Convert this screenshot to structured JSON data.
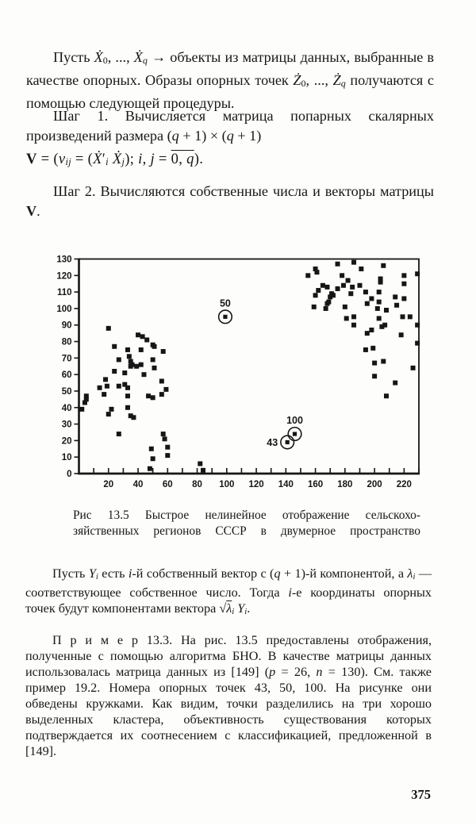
{
  "page": {
    "number": "375"
  },
  "paragraphs": {
    "p1": [
      {
        "t": "Пусть "
      },
      {
        "t": "Ẋ",
        "i": 1
      },
      {
        "t": "0",
        "sub": 1
      },
      {
        "t": ", ..., "
      },
      {
        "t": "Ẋ",
        "i": 1
      },
      {
        "t": "q",
        "sub": 1,
        "i": 1
      },
      {
        "t": " → объекты из матрицы данных, выбранные в качестве опорных. Образы опорных точек "
      },
      {
        "t": "Ż",
        "i": 1
      },
      {
        "t": "0",
        "sub": 1
      },
      {
        "t": ", ..., "
      },
      {
        "t": "Ż",
        "i": 1
      },
      {
        "t": "q",
        "sub": 1,
        "i": 1
      },
      {
        "t": " получаются с помощью следующей процедуры."
      }
    ],
    "p2": [
      {
        "t": "Шаг 1. Вычисляется матрица попарных скалярных произведений размера ("
      },
      {
        "t": "q",
        "i": 1
      },
      {
        "t": " + 1) × ("
      },
      {
        "t": "q",
        "i": 1
      },
      {
        "t": " + 1)"
      }
    ],
    "formula1": [
      {
        "t": "V",
        "b": 1
      },
      {
        "t": " = ("
      },
      {
        "t": "v",
        "i": 1
      },
      {
        "t": "ij",
        "sub": 1,
        "i": 1
      },
      {
        "t": " = ("
      },
      {
        "t": "Ẋ",
        "i": 1
      },
      {
        "t": "′"
      },
      {
        "t": "i",
        "sub": 1,
        "i": 1
      },
      {
        "t": " "
      },
      {
        "t": "Ẋ",
        "i": 1
      },
      {
        "t": "j",
        "sub": 1,
        "i": 1
      },
      {
        "t": ");  "
      },
      {
        "t": "i",
        "i": 1
      },
      {
        "t": ", "
      },
      {
        "t": "j",
        "i": 1
      },
      {
        "t": " = "
      },
      {
        "t": "0, ",
        "ov": 1
      },
      {
        "t": "q",
        "ov": 1,
        "i": 1
      },
      {
        "t": ")."
      }
    ],
    "p3": [
      {
        "t": "Шаг 2. Вычисляются собственные числа и векторы матрицы "
      },
      {
        "t": "V",
        "b": 1
      },
      {
        "t": "."
      }
    ],
    "p4": [
      {
        "t": "Пусть "
      },
      {
        "t": "Y",
        "i": 1
      },
      {
        "t": "i",
        "sub": 1,
        "i": 1
      },
      {
        "t": " есть "
      },
      {
        "t": "i",
        "i": 1
      },
      {
        "t": "-й собственный вектор с ("
      },
      {
        "t": "q",
        "i": 1
      },
      {
        "t": " + 1)-й компонентой, а "
      },
      {
        "t": "λ",
        "i": 1
      },
      {
        "t": "i",
        "sub": 1,
        "i": 1
      },
      {
        "t": " — соответствующее собственное число. Тогда "
      },
      {
        "t": "i",
        "i": 1
      },
      {
        "t": "-е координаты опорных точек будут компонентами вектора "
      },
      {
        "t": "√"
      },
      {
        "t": "λ",
        "i": 1,
        "ov": 1
      },
      {
        "t": "i",
        "sub": 1,
        "i": 1
      },
      {
        "t": " "
      },
      {
        "t": "Y",
        "i": 1
      },
      {
        "t": "i",
        "sub": 1,
        "i": 1
      },
      {
        "t": "."
      }
    ],
    "p5": [
      {
        "t": "П р и м е р 13.3.  На рис. 13.5 предоставлены отображения, полученные с помощью алгоритма БНО. В качестве матрицы данных использовалась матрица данных из [149] ("
      },
      {
        "t": "p",
        "i": 1
      },
      {
        "t": " = 26, "
      },
      {
        "t": "n",
        "i": 1
      },
      {
        "t": " = 130). См. также пример 19.2. Номера опорных точек 43, 50, 100. На рисунке они обведены кружками. Как видим, точки разделились на три хорошо выделенных кластера, объективность существования которых подтверждается их соотнесением с классификацией, предложенной в [149]."
      }
    ]
  },
  "caption": {
    "line1": "Рис 13.5 Быстрое нелинейное отображение сельскохо-",
    "line2": "зяйственных регионов СССР в двумерное пространство"
  },
  "chart_data": {
    "type": "scatter",
    "title": "",
    "xlabel": "",
    "ylabel": "",
    "xlim": [
      0,
      230
    ],
    "ylim": [
      0,
      130
    ],
    "x_tick_labels": [
      20,
      40,
      60,
      80,
      100,
      120,
      140,
      160,
      180,
      200,
      220
    ],
    "x_minor_tick_step": 10,
    "y_tick_labels": [
      0,
      10,
      20,
      30,
      40,
      50,
      60,
      70,
      80,
      90,
      100,
      110,
      120,
      130
    ],
    "grid": false,
    "legend": "none",
    "marker": {
      "shape": "square",
      "size": 6,
      "color": "#161616"
    },
    "series": [
      {
        "name": "left-cluster",
        "points": [
          [
            2,
            39
          ],
          [
            4,
            43
          ],
          [
            5,
            45
          ],
          [
            5,
            47
          ],
          [
            14,
            52
          ],
          [
            17,
            48
          ],
          [
            18,
            57
          ],
          [
            19,
            53
          ],
          [
            20,
            36
          ],
          [
            20,
            88
          ],
          [
            22,
            39
          ],
          [
            24,
            62
          ],
          [
            24,
            77
          ],
          [
            27,
            24
          ],
          [
            27,
            53
          ],
          [
            27,
            69
          ],
          [
            31,
            54
          ],
          [
            31,
            61
          ],
          [
            33,
            40
          ],
          [
            33,
            47
          ],
          [
            33,
            52
          ],
          [
            33,
            75
          ],
          [
            34,
            71
          ],
          [
            35,
            35
          ],
          [
            35,
            65
          ],
          [
            35,
            68
          ],
          [
            36,
            66
          ],
          [
            37,
            34
          ],
          [
            39,
            65
          ],
          [
            40,
            84
          ],
          [
            42,
            66
          ],
          [
            42,
            75
          ],
          [
            43,
            83
          ],
          [
            44,
            60
          ],
          [
            46,
            81
          ],
          [
            47,
            47
          ],
          [
            48,
            3
          ],
          [
            49,
            15
          ],
          [
            50,
            9
          ],
          [
            50,
            46
          ],
          [
            50,
            69
          ],
          [
            50,
            78
          ],
          [
            51,
            64
          ],
          [
            51,
            77
          ],
          [
            56,
            48
          ],
          [
            56,
            56
          ],
          [
            57,
            24
          ],
          [
            57,
            74
          ],
          [
            58,
            21
          ],
          [
            59,
            51
          ],
          [
            60,
            11
          ],
          [
            60,
            16
          ],
          [
            82,
            6
          ],
          [
            84,
            2
          ]
        ]
      },
      {
        "name": "right-cluster",
        "points": [
          [
            155,
            120
          ],
          [
            159,
            101
          ],
          [
            160,
            108
          ],
          [
            160,
            124
          ],
          [
            161,
            122
          ],
          [
            162,
            111
          ],
          [
            165,
            114
          ],
          [
            167,
            100
          ],
          [
            168,
            103
          ],
          [
            168,
            113
          ],
          [
            169,
            104
          ],
          [
            170,
            107
          ],
          [
            171,
            109
          ],
          [
            172,
            108
          ],
          [
            175,
            112
          ],
          [
            175,
            127
          ],
          [
            178,
            120
          ],
          [
            179,
            114
          ],
          [
            180,
            101
          ],
          [
            181,
            94
          ],
          [
            182,
            117
          ],
          [
            184,
            109
          ],
          [
            185,
            113
          ],
          [
            186,
            90
          ],
          [
            186,
            95
          ],
          [
            186,
            128
          ],
          [
            190,
            114
          ],
          [
            191,
            124
          ],
          [
            194,
            75
          ],
          [
            194,
            110
          ],
          [
            195,
            85
          ],
          [
            195,
            103
          ],
          [
            198,
            87
          ],
          [
            198,
            106
          ],
          [
            199,
            76
          ],
          [
            200,
            59
          ],
          [
            200,
            67
          ],
          [
            202,
            100
          ],
          [
            203,
            94
          ],
          [
            203,
            104
          ],
          [
            203,
            110
          ],
          [
            204,
            116
          ],
          [
            204,
            118
          ],
          [
            205,
            89
          ],
          [
            206,
            68
          ],
          [
            206,
            126
          ],
          [
            207,
            90
          ],
          [
            208,
            47
          ],
          [
            208,
            99
          ],
          [
            214,
            55
          ],
          [
            214,
            107
          ],
          [
            215,
            102
          ],
          [
            218,
            84
          ],
          [
            219,
            95
          ],
          [
            220,
            106
          ],
          [
            220,
            115
          ],
          [
            220,
            120
          ],
          [
            224,
            95
          ],
          [
            226,
            64
          ],
          [
            229,
            79
          ],
          [
            229,
            90
          ],
          [
            229,
            121
          ]
        ]
      }
    ],
    "reference_points": [
      {
        "label": "50",
        "x": 99,
        "y": 95,
        "label_position": "above"
      },
      {
        "label": "43",
        "x": 141,
        "y": 19,
        "label_position": "left"
      },
      {
        "label": "100",
        "x": 146,
        "y": 24,
        "label_position": "above"
      }
    ]
  }
}
